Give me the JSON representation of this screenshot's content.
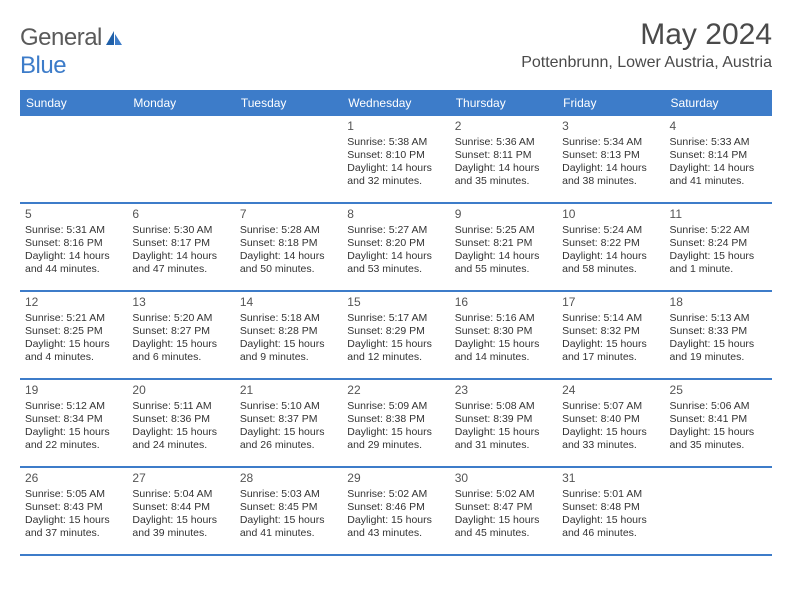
{
  "logo": {
    "word1": "General",
    "word2": "Blue"
  },
  "header": {
    "month_title": "May 2024",
    "location": "Pottenbrunn, Lower Austria, Austria"
  },
  "calendar": {
    "type": "table",
    "header_bg": "#3d7cc9",
    "header_text_color": "#ffffff",
    "border_color": "#3d7cc9",
    "cell_font_size": 10.5,
    "daynum_font_size": 12,
    "day_headers": [
      "Sunday",
      "Monday",
      "Tuesday",
      "Wednesday",
      "Thursday",
      "Friday",
      "Saturday"
    ],
    "rows": [
      [
        {
          "empty": true
        },
        {
          "empty": true
        },
        {
          "empty": true
        },
        {
          "day": "1",
          "sunrise": "Sunrise: 5:38 AM",
          "sunset": "Sunset: 8:10 PM",
          "daylight": "Daylight: 14 hours and 32 minutes."
        },
        {
          "day": "2",
          "sunrise": "Sunrise: 5:36 AM",
          "sunset": "Sunset: 8:11 PM",
          "daylight": "Daylight: 14 hours and 35 minutes."
        },
        {
          "day": "3",
          "sunrise": "Sunrise: 5:34 AM",
          "sunset": "Sunset: 8:13 PM",
          "daylight": "Daylight: 14 hours and 38 minutes."
        },
        {
          "day": "4",
          "sunrise": "Sunrise: 5:33 AM",
          "sunset": "Sunset: 8:14 PM",
          "daylight": "Daylight: 14 hours and 41 minutes."
        }
      ],
      [
        {
          "day": "5",
          "sunrise": "Sunrise: 5:31 AM",
          "sunset": "Sunset: 8:16 PM",
          "daylight": "Daylight: 14 hours and 44 minutes."
        },
        {
          "day": "6",
          "sunrise": "Sunrise: 5:30 AM",
          "sunset": "Sunset: 8:17 PM",
          "daylight": "Daylight: 14 hours and 47 minutes."
        },
        {
          "day": "7",
          "sunrise": "Sunrise: 5:28 AM",
          "sunset": "Sunset: 8:18 PM",
          "daylight": "Daylight: 14 hours and 50 minutes."
        },
        {
          "day": "8",
          "sunrise": "Sunrise: 5:27 AM",
          "sunset": "Sunset: 8:20 PM",
          "daylight": "Daylight: 14 hours and 53 minutes."
        },
        {
          "day": "9",
          "sunrise": "Sunrise: 5:25 AM",
          "sunset": "Sunset: 8:21 PM",
          "daylight": "Daylight: 14 hours and 55 minutes."
        },
        {
          "day": "10",
          "sunrise": "Sunrise: 5:24 AM",
          "sunset": "Sunset: 8:22 PM",
          "daylight": "Daylight: 14 hours and 58 minutes."
        },
        {
          "day": "11",
          "sunrise": "Sunrise: 5:22 AM",
          "sunset": "Sunset: 8:24 PM",
          "daylight": "Daylight: 15 hours and 1 minute."
        }
      ],
      [
        {
          "day": "12",
          "sunrise": "Sunrise: 5:21 AM",
          "sunset": "Sunset: 8:25 PM",
          "daylight": "Daylight: 15 hours and 4 minutes."
        },
        {
          "day": "13",
          "sunrise": "Sunrise: 5:20 AM",
          "sunset": "Sunset: 8:27 PM",
          "daylight": "Daylight: 15 hours and 6 minutes."
        },
        {
          "day": "14",
          "sunrise": "Sunrise: 5:18 AM",
          "sunset": "Sunset: 8:28 PM",
          "daylight": "Daylight: 15 hours and 9 minutes."
        },
        {
          "day": "15",
          "sunrise": "Sunrise: 5:17 AM",
          "sunset": "Sunset: 8:29 PM",
          "daylight": "Daylight: 15 hours and 12 minutes."
        },
        {
          "day": "16",
          "sunrise": "Sunrise: 5:16 AM",
          "sunset": "Sunset: 8:30 PM",
          "daylight": "Daylight: 15 hours and 14 minutes."
        },
        {
          "day": "17",
          "sunrise": "Sunrise: 5:14 AM",
          "sunset": "Sunset: 8:32 PM",
          "daylight": "Daylight: 15 hours and 17 minutes."
        },
        {
          "day": "18",
          "sunrise": "Sunrise: 5:13 AM",
          "sunset": "Sunset: 8:33 PM",
          "daylight": "Daylight: 15 hours and 19 minutes."
        }
      ],
      [
        {
          "day": "19",
          "sunrise": "Sunrise: 5:12 AM",
          "sunset": "Sunset: 8:34 PM",
          "daylight": "Daylight: 15 hours and 22 minutes."
        },
        {
          "day": "20",
          "sunrise": "Sunrise: 5:11 AM",
          "sunset": "Sunset: 8:36 PM",
          "daylight": "Daylight: 15 hours and 24 minutes."
        },
        {
          "day": "21",
          "sunrise": "Sunrise: 5:10 AM",
          "sunset": "Sunset: 8:37 PM",
          "daylight": "Daylight: 15 hours and 26 minutes."
        },
        {
          "day": "22",
          "sunrise": "Sunrise: 5:09 AM",
          "sunset": "Sunset: 8:38 PM",
          "daylight": "Daylight: 15 hours and 29 minutes."
        },
        {
          "day": "23",
          "sunrise": "Sunrise: 5:08 AM",
          "sunset": "Sunset: 8:39 PM",
          "daylight": "Daylight: 15 hours and 31 minutes."
        },
        {
          "day": "24",
          "sunrise": "Sunrise: 5:07 AM",
          "sunset": "Sunset: 8:40 PM",
          "daylight": "Daylight: 15 hours and 33 minutes."
        },
        {
          "day": "25",
          "sunrise": "Sunrise: 5:06 AM",
          "sunset": "Sunset: 8:41 PM",
          "daylight": "Daylight: 15 hours and 35 minutes."
        }
      ],
      [
        {
          "day": "26",
          "sunrise": "Sunrise: 5:05 AM",
          "sunset": "Sunset: 8:43 PM",
          "daylight": "Daylight: 15 hours and 37 minutes."
        },
        {
          "day": "27",
          "sunrise": "Sunrise: 5:04 AM",
          "sunset": "Sunset: 8:44 PM",
          "daylight": "Daylight: 15 hours and 39 minutes."
        },
        {
          "day": "28",
          "sunrise": "Sunrise: 5:03 AM",
          "sunset": "Sunset: 8:45 PM",
          "daylight": "Daylight: 15 hours and 41 minutes."
        },
        {
          "day": "29",
          "sunrise": "Sunrise: 5:02 AM",
          "sunset": "Sunset: 8:46 PM",
          "daylight": "Daylight: 15 hours and 43 minutes."
        },
        {
          "day": "30",
          "sunrise": "Sunrise: 5:02 AM",
          "sunset": "Sunset: 8:47 PM",
          "daylight": "Daylight: 15 hours and 45 minutes."
        },
        {
          "day": "31",
          "sunrise": "Sunrise: 5:01 AM",
          "sunset": "Sunset: 8:48 PM",
          "daylight": "Daylight: 15 hours and 46 minutes."
        },
        {
          "empty": true
        }
      ]
    ]
  }
}
